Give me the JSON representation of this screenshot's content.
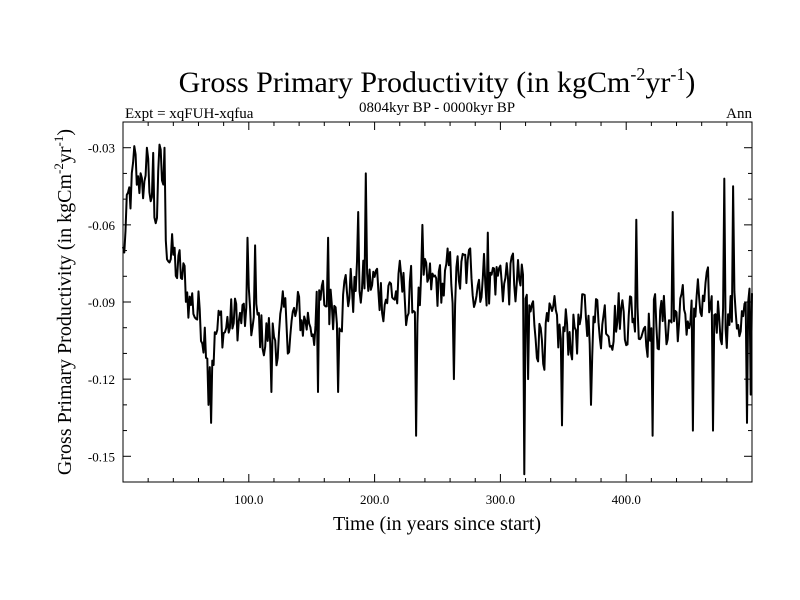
{
  "chart_data": {
    "type": "line",
    "title_main": "Gross Primary Productivity (in kgCm",
    "title_sup1": "-2",
    "title_mid": "yr",
    "title_sup2": "-1",
    "title_end": ")",
    "left_label": "Expt = xqFUH-xqfua",
    "center_label": "0804kyr BP - 0000kyr BP",
    "right_label": "Ann",
    "xlabel": "Time (in years since start)",
    "ylabel_main": "Gross Primary Productivity (in kgCm",
    "ylabel_sup1": "-2",
    "ylabel_mid": "yr",
    "ylabel_sup2": "-1",
    "ylabel_end": ")",
    "xlim": [
      0,
      500
    ],
    "ylim": [
      -0.16,
      -0.02
    ],
    "x_ticks": [
      100,
      200,
      300,
      400
    ],
    "x_tick_labels": [
      "100.0",
      "200.0",
      "300.0",
      "400.0"
    ],
    "y_ticks": [
      -0.03,
      -0.06,
      -0.09,
      -0.12,
      -0.15
    ],
    "y_tick_labels": [
      "-0.03",
      "-0.06",
      "-0.09",
      "-0.12",
      "-0.15"
    ],
    "series": [
      {
        "name": "Gross Primary Productivity",
        "control_points": [
          [
            0,
            -0.072
          ],
          [
            3,
            -0.06
          ],
          [
            6,
            -0.05
          ],
          [
            9,
            -0.04
          ],
          [
            12,
            -0.048
          ],
          [
            15,
            -0.036
          ],
          [
            18,
            -0.05
          ],
          [
            21,
            -0.044
          ],
          [
            24,
            -0.058
          ],
          [
            27,
            -0.052
          ],
          [
            30,
            -0.034
          ],
          [
            33,
            -0.06
          ],
          [
            36,
            -0.066
          ],
          [
            40,
            -0.075
          ],
          [
            45,
            -0.08
          ],
          [
            50,
            -0.085
          ],
          [
            55,
            -0.09
          ],
          [
            60,
            -0.094
          ],
          [
            65,
            -0.098
          ],
          [
            70,
            -0.108
          ],
          [
            75,
            -0.102
          ],
          [
            80,
            -0.1
          ],
          [
            90,
            -0.097
          ],
          [
            100,
            -0.098
          ],
          [
            110,
            -0.102
          ],
          [
            120,
            -0.104
          ],
          [
            130,
            -0.1
          ],
          [
            140,
            -0.097
          ],
          [
            150,
            -0.096
          ],
          [
            160,
            -0.092
          ],
          [
            170,
            -0.088
          ],
          [
            180,
            -0.085
          ],
          [
            190,
            -0.084
          ],
          [
            200,
            -0.083
          ],
          [
            210,
            -0.086
          ],
          [
            220,
            -0.087
          ],
          [
            230,
            -0.09
          ],
          [
            240,
            -0.088
          ],
          [
            250,
            -0.084
          ],
          [
            260,
            -0.082
          ],
          [
            270,
            -0.08
          ],
          [
            280,
            -0.079
          ],
          [
            290,
            -0.08
          ],
          [
            300,
            -0.08
          ],
          [
            310,
            -0.082
          ],
          [
            316,
            -0.084
          ],
          [
            320,
            -0.092
          ],
          [
            330,
            -0.1
          ],
          [
            340,
            -0.104
          ],
          [
            350,
            -0.103
          ],
          [
            360,
            -0.1
          ],
          [
            370,
            -0.098
          ],
          [
            380,
            -0.095
          ],
          [
            390,
            -0.094
          ],
          [
            400,
            -0.094
          ],
          [
            410,
            -0.095
          ],
          [
            420,
            -0.097
          ],
          [
            430,
            -0.098
          ],
          [
            440,
            -0.096
          ],
          [
            450,
            -0.095
          ],
          [
            460,
            -0.094
          ],
          [
            470,
            -0.093
          ],
          [
            480,
            -0.094
          ],
          [
            490,
            -0.095
          ],
          [
            500,
            -0.098
          ]
        ],
        "noise_amplitude": 0.011,
        "spikes": [
          [
            19,
            -0.03
          ],
          [
            24,
            -0.032
          ],
          [
            33,
            -0.03
          ],
          [
            70,
            -0.137
          ],
          [
            68,
            -0.13
          ],
          [
            99,
            -0.065
          ],
          [
            105,
            -0.068
          ],
          [
            118,
            -0.125
          ],
          [
            155,
            -0.125
          ],
          [
            163,
            -0.065
          ],
          [
            171,
            -0.125
          ],
          [
            187,
            -0.055
          ],
          [
            193,
            -0.04
          ],
          [
            233,
            -0.142
          ],
          [
            238,
            -0.06
          ],
          [
            263,
            -0.12
          ],
          [
            290,
            -0.063
          ],
          [
            319,
            -0.157
          ],
          [
            322,
            -0.12
          ],
          [
            349,
            -0.138
          ],
          [
            372,
            -0.13
          ],
          [
            408,
            -0.058
          ],
          [
            421,
            -0.142
          ],
          [
            437,
            -0.055
          ],
          [
            453,
            -0.14
          ],
          [
            469,
            -0.14
          ],
          [
            478,
            -0.042
          ],
          [
            485,
            -0.045
          ],
          [
            496,
            -0.137
          ],
          [
            499,
            -0.126
          ]
        ]
      }
    ]
  }
}
